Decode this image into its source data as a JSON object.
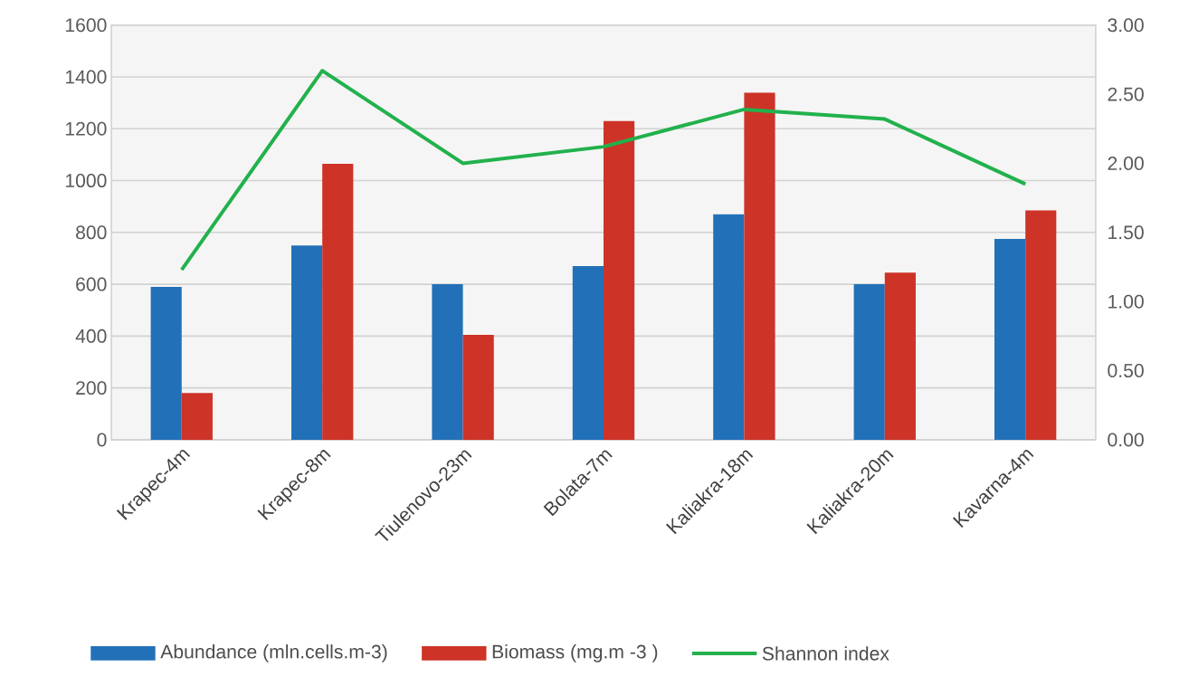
{
  "chart_data": {
    "type": "bar",
    "categories": [
      "Krapec-4m",
      "Krapec-8m",
      "Tiulenovo-23m",
      "Bolata-7m",
      "Kaliakra-18m",
      "Kaliakra-20m",
      "Kavarna-4m"
    ],
    "series": [
      {
        "name": "Abundance (mln.cells.m-3)",
        "color": "#2271b8",
        "values": [
          590,
          750,
          600,
          670,
          870,
          600,
          775
        ]
      },
      {
        "name": "Biomass (mg.m -3 )",
        "color": "#cd3327",
        "values": [
          180,
          1065,
          405,
          1230,
          1340,
          645,
          885
        ]
      },
      {
        "name": "Shannon index",
        "type": "line",
        "axis": "y2",
        "color": "#22b14c",
        "values": [
          1.23,
          2.67,
          2.0,
          2.12,
          2.39,
          2.32,
          1.85
        ]
      }
    ],
    "ylim": [
      0,
      1600
    ],
    "yticks": [
      0,
      200,
      400,
      600,
      800,
      1000,
      1200,
      1400,
      1600
    ],
    "y2lim": [
      0,
      3
    ],
    "y2ticks": [
      {
        "value": 0,
        "label": "0.00"
      },
      {
        "value": 0.5,
        "label": "0.50"
      },
      {
        "value": 1,
        "label": "1.00"
      },
      {
        "value": 1.5,
        "label": "1.50"
      },
      {
        "value": 2,
        "label": "2.00"
      },
      {
        "value": 2.5,
        "label": "2.50"
      },
      {
        "value": 3,
        "label": "3.00"
      }
    ],
    "grid": true,
    "legend": "bottom"
  }
}
